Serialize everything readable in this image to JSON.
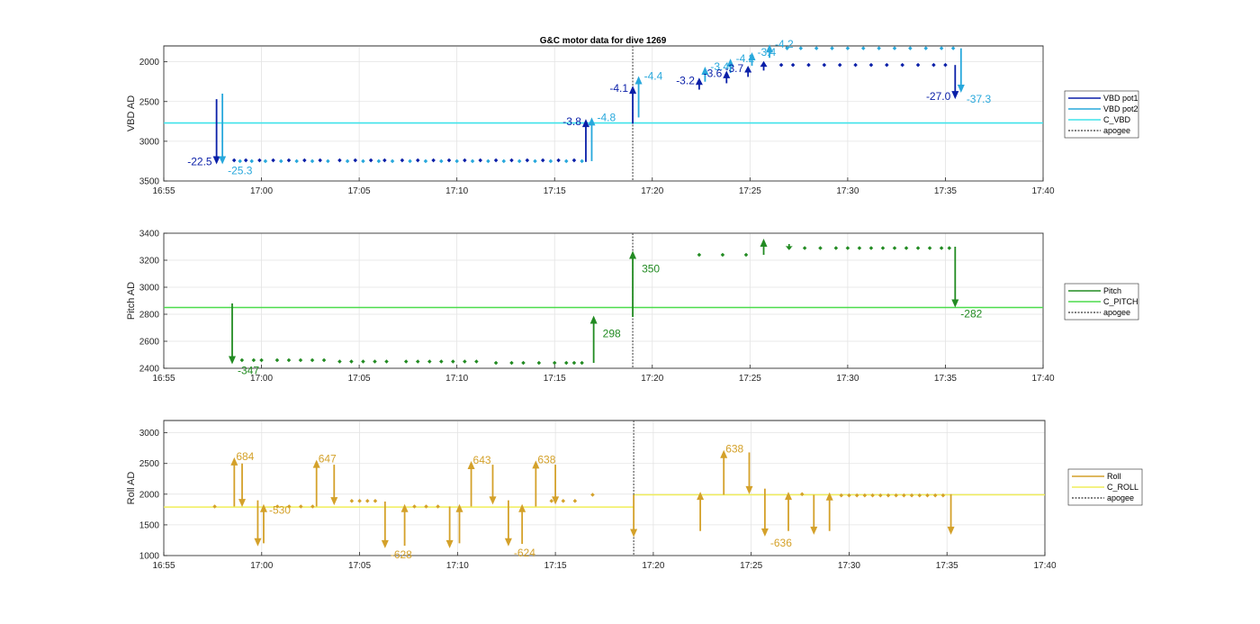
{
  "figure": {
    "title": "G&C motor data for dive 1269"
  },
  "chart_data": [
    {
      "type": "line",
      "ylabel": "VBD AD",
      "ylim": [
        3500,
        1800
      ],
      "y_reversed": true,
      "yticks": [
        2000,
        2500,
        3000,
        3500
      ],
      "xlim": [
        "16:55",
        "17:40"
      ],
      "xticks": [
        "16:55",
        "17:00",
        "17:05",
        "17:10",
        "17:15",
        "17:20",
        "17:25",
        "17:30",
        "17:35",
        "17:40"
      ],
      "grid": true,
      "legend_position": "outside-right",
      "legend": [
        "VBD pot1",
        "VBD pot2",
        "C_VBD",
        "apogee"
      ],
      "colors": {
        "pot1": "#0a1fa8",
        "pot2": "#28a8dc",
        "ref": "#3fe3ea",
        "apogee": "#555555"
      },
      "reference_line": {
        "name": "C_VBD",
        "y": 2770
      },
      "apogee_x": "17:19",
      "series": [
        {
          "name": "VBD pot1",
          "marker": "dot",
          "x": [
            "16:58.6",
            "16:59.2",
            "16:59.9",
            "17:00.6",
            "17:01.4",
            "17:02.2",
            "17:03.0",
            "17:04.0",
            "17:04.8",
            "17:05.6",
            "17:06.3",
            "17:07.2",
            "17:08.0",
            "17:08.8",
            "17:09.6",
            "17:10.4",
            "17:11.2",
            "17:12.0",
            "17:12.8",
            "17:13.6",
            "17:14.4",
            "17:15.2",
            "17:16.0",
            "17:26.6",
            "17:27.2",
            "17:28.0",
            "17:28.8",
            "17:29.6",
            "17:30.4",
            "17:31.2",
            "17:32.0",
            "17:32.8",
            "17:33.6",
            "17:34.4",
            "17:35.0"
          ],
          "y": [
            3240,
            3240,
            3240,
            3240,
            3240,
            3240,
            3240,
            3240,
            3240,
            3240,
            3240,
            3240,
            3240,
            3240,
            3240,
            3240,
            3240,
            3240,
            3240,
            3240,
            3240,
            3240,
            3240,
            2040,
            2040,
            2040,
            2040,
            2040,
            2040,
            2040,
            2040,
            2040,
            2040,
            2040,
            2040
          ]
        },
        {
          "name": "VBD pot2",
          "marker": "dot",
          "x": [
            "16:58.9",
            "16:59.5",
            "17:00.2",
            "17:01.0",
            "17:01.8",
            "17:02.6",
            "17:03.4",
            "17:04.4",
            "17:05.2",
            "17:06.0",
            "17:06.7",
            "17:07.6",
            "17:08.4",
            "17:09.2",
            "17:10.0",
            "17:10.8",
            "17:11.6",
            "17:12.4",
            "17:13.2",
            "17:14.0",
            "17:14.8",
            "17:15.6",
            "17:16.4",
            "17:26.9",
            "17:27.6",
            "17:28.4",
            "17:29.2",
            "17:30.0",
            "17:30.8",
            "17:31.6",
            "17:32.4",
            "17:33.2",
            "17:34.0",
            "17:34.8",
            "17:35.4"
          ],
          "y": [
            3250,
            3250,
            3250,
            3250,
            3250,
            3250,
            3250,
            3250,
            3250,
            3250,
            3250,
            3250,
            3250,
            3250,
            3250,
            3250,
            3250,
            3250,
            3250,
            3250,
            3250,
            3250,
            3250,
            1830,
            1830,
            1830,
            1830,
            1830,
            1830,
            1830,
            1830,
            1830,
            1830,
            1830,
            1830
          ]
        }
      ],
      "moves": [
        {
          "series": "VBD pot1",
          "x": "16:57.7",
          "from": 2470,
          "to": 3290,
          "label": "-22.5",
          "label_side": "left"
        },
        {
          "series": "VBD pot2",
          "x": "16:58.0",
          "from": 2400,
          "to": 3290,
          "label": "-25.3",
          "label_side": "right-below"
        },
        {
          "series": "VBD pot1",
          "x": "17:16.6",
          "from": 3260,
          "to": 2720,
          "label": "-3.8",
          "label_side": "left"
        },
        {
          "series": "VBD pot2",
          "x": "17:16.9",
          "from": 3250,
          "to": 2700,
          "label": "-4.8",
          "label_side": "right"
        },
        {
          "series": "VBD pot1",
          "x": "17:19.0",
          "from": 2780,
          "to": 2300,
          "label": "-4.1",
          "label_side": "left"
        },
        {
          "series": "VBD pot2",
          "x": "17:19.3",
          "from": 2700,
          "to": 2180,
          "label": "-4.4",
          "label_side": "right"
        },
        {
          "series": "VBD pot1",
          "x": "17:22.4",
          "from": 2350,
          "to": 2200,
          "label": "-3.2",
          "label_side": "left"
        },
        {
          "series": "VBD pot2",
          "x": "17:22.7",
          "from": 2250,
          "to": 2060,
          "label": "-3.4",
          "label_side": "right"
        },
        {
          "series": "VBD pot1",
          "x": "17:23.8",
          "from": 2270,
          "to": 2110,
          "label": "-3.6",
          "label_side": "left"
        },
        {
          "series": "VBD pot2",
          "x": "17:24.0",
          "from": 2140,
          "to": 1960,
          "label": "-4.2",
          "label_side": "right"
        },
        {
          "series": "VBD pot1",
          "x": "17:24.9",
          "from": 2190,
          "to": 2050,
          "label": "-3.7",
          "label_side": "left"
        },
        {
          "series": "VBD pot2",
          "x": "17:25.1",
          "from": 2050,
          "to": 1880,
          "label": "-3.4",
          "label_side": "right"
        },
        {
          "series": "VBD pot1",
          "x": "17:25.7",
          "from": 2110,
          "to": 1990,
          "label": "",
          "label_side": "right"
        },
        {
          "series": "VBD pot2",
          "x": "17:26.0",
          "from": 1950,
          "to": 1780,
          "label": "-4.2",
          "label_side": "right"
        },
        {
          "series": "VBD pot1",
          "x": "17:35.5",
          "from": 2040,
          "to": 2470,
          "label": "-27.0",
          "label_side": "left"
        },
        {
          "series": "VBD pot2",
          "x": "17:35.8",
          "from": 1830,
          "to": 2390,
          "label": "-37.3",
          "label_side": "right-below"
        }
      ]
    },
    {
      "type": "line",
      "ylabel": "Pitch AD",
      "ylim": [
        2400,
        3400
      ],
      "yticks": [
        2400,
        2600,
        2800,
        3000,
        3200,
        3400
      ],
      "xlim": [
        "16:55",
        "17:40"
      ],
      "xticks": [
        "16:55",
        "17:00",
        "17:05",
        "17:10",
        "17:15",
        "17:20",
        "17:25",
        "17:30",
        "17:35",
        "17:40"
      ],
      "grid": true,
      "legend_position": "outside-right",
      "legend": [
        "Pitch",
        "C_PITCH",
        "apogee"
      ],
      "colors": {
        "main": "#228b22",
        "ref": "#4cdc4c",
        "apogee": "#555555"
      },
      "reference_line": {
        "name": "C_PITCH",
        "y": 2850
      },
      "apogee_x": "17:19",
      "series": [
        {
          "name": "Pitch",
          "marker": "dot",
          "x": [
            "16:59.0",
            "16:59.6",
            "17:00.0",
            "17:00.8",
            "17:01.4",
            "17:02.0",
            "17:02.6",
            "17:03.2",
            "17:04.0",
            "17:04.6",
            "17:05.2",
            "17:05.8",
            "17:06.4",
            "17:07.4",
            "17:08.0",
            "17:08.6",
            "17:09.2",
            "17:09.8",
            "17:10.4",
            "17:11.0",
            "17:12.0",
            "17:12.8",
            "17:13.4",
            "17:14.2",
            "17:15.0",
            "17:15.6",
            "17:16.0",
            "17:16.4",
            "17:22.4",
            "17:23.6",
            "17:24.8",
            "17:27.0",
            "17:27.8",
            "17:28.6",
            "17:29.4",
            "17:30.0",
            "17:30.6",
            "17:31.2",
            "17:31.8",
            "17:32.4",
            "17:33.0",
            "17:33.6",
            "17:34.2",
            "17:34.8",
            "17:35.2"
          ],
          "y": [
            2460,
            2460,
            2460,
            2460,
            2460,
            2460,
            2460,
            2460,
            2450,
            2450,
            2450,
            2450,
            2450,
            2450,
            2450,
            2450,
            2450,
            2450,
            2450,
            2450,
            2440,
            2440,
            2440,
            2440,
            2440,
            2440,
            2440,
            2440,
            3240,
            3240,
            3240,
            3290,
            3290,
            3290,
            3290,
            3290,
            3290,
            3290,
            3290,
            3290,
            3290,
            3290,
            3290,
            3290,
            3290
          ]
        }
      ],
      "moves": [
        {
          "x": "16:58.5",
          "from": 2880,
          "to": 2430,
          "label": "-347",
          "label_side": "right-below"
        },
        {
          "x": "17:17.0",
          "from": 2440,
          "to": 2790,
          "label": "298",
          "label_side": "right-mid"
        },
        {
          "x": "17:19.0",
          "from": 2780,
          "to": 3270,
          "label": "350",
          "label_side": "right-mid"
        },
        {
          "x": "17:25.7",
          "from": 3240,
          "to": 3360,
          "label": "",
          "label_side": "right"
        },
        {
          "x": "17:27.0",
          "from": 3320,
          "to": 3280,
          "label": "",
          "label_side": "right"
        },
        {
          "x": "17:35.5",
          "from": 3300,
          "to": 2850,
          "label": "-282",
          "label_side": "right-below"
        }
      ]
    },
    {
      "type": "line",
      "ylabel": "Roll AD",
      "ylim": [
        1000,
        3200
      ],
      "yticks": [
        1000,
        1500,
        2000,
        2500,
        3000
      ],
      "xlim": [
        "16:55",
        "17:40"
      ],
      "xticks": [
        "16:55",
        "17:00",
        "17:05",
        "17:10",
        "17:15",
        "17:20",
        "17:25",
        "17:30",
        "17:35",
        "17:40"
      ],
      "grid": true,
      "legend_position": "outside-right",
      "legend": [
        "Roll",
        "C_ROLL",
        "apogee"
      ],
      "colors": {
        "main": "#d4a12a",
        "ref": "#f0ee5a",
        "apogee": "#555555"
      },
      "reference_line": {
        "name": "C_ROLL",
        "segments": [
          {
            "x0": "16:55",
            "x1": "17:19",
            "y": 1790
          },
          {
            "x0": "17:19",
            "x1": "17:40",
            "y": 1990
          }
        ]
      },
      "apogee_x": "17:19",
      "series": [
        {
          "name": "Roll",
          "marker": "dot",
          "x": [
            "16:57.6",
            "17:00.8",
            "17:01.4",
            "17:02.0",
            "17:02.6",
            "17:04.6",
            "17:05.0",
            "17:05.4",
            "17:05.8",
            "17:07.8",
            "17:08.4",
            "17:09.0",
            "17:14.8",
            "17:15.4",
            "17:16.0",
            "17:16.9",
            "17:27.6",
            "17:29.6",
            "17:30.0",
            "17:30.4",
            "17:30.8",
            "17:31.2",
            "17:31.6",
            "17:32.0",
            "17:32.4",
            "17:32.8",
            "17:33.2",
            "17:33.6",
            "17:34.0",
            "17:34.4",
            "17:34.8"
          ],
          "y": [
            1800,
            1800,
            1800,
            1800,
            1800,
            1890,
            1890,
            1890,
            1890,
            1800,
            1800,
            1800,
            1890,
            1890,
            1890,
            1990,
            2000,
            1980,
            1980,
            1980,
            1980,
            1980,
            1980,
            1980,
            1980,
            1980,
            1980,
            1980,
            1980,
            1980,
            1980
          ]
        }
      ],
      "moves": [
        {
          "x": "16:58.6",
          "from": 1800,
          "to": 2600,
          "label": "684",
          "label_side": "right-top"
        },
        {
          "x": "16:59.0",
          "from": 2500,
          "to": 1790,
          "label": "",
          "label_side": "right"
        },
        {
          "x": "16:59.8",
          "from": 1900,
          "to": 1150,
          "label": "",
          "label_side": "right"
        },
        {
          "x": "17:00.1",
          "from": 1200,
          "to": 1840,
          "label": "-530",
          "label_side": "right-below"
        },
        {
          "x": "17:02.8",
          "from": 1800,
          "to": 2560,
          "label": "647",
          "label_side": "right-top"
        },
        {
          "x": "17:03.7",
          "from": 2480,
          "to": 1820,
          "label": "",
          "label_side": "right"
        },
        {
          "x": "17:06.3",
          "from": 1880,
          "to": 1120,
          "label": "-628",
          "label_side": "right-below"
        },
        {
          "x": "17:07.3",
          "from": 1160,
          "to": 1840,
          "label": "",
          "label_side": "right"
        },
        {
          "x": "17:09.6",
          "from": 1800,
          "to": 1120,
          "label": "",
          "label_side": "right"
        },
        {
          "x": "17:10.1",
          "from": 1200,
          "to": 1840,
          "label": "",
          "label_side": "right"
        },
        {
          "x": "17:10.7",
          "from": 1800,
          "to": 2540,
          "label": "643",
          "label_side": "right-top"
        },
        {
          "x": "17:11.8",
          "from": 2480,
          "to": 1830,
          "label": "",
          "label_side": "right"
        },
        {
          "x": "17:12.6",
          "from": 1900,
          "to": 1150,
          "label": "-624",
          "label_side": "right-below"
        },
        {
          "x": "17:13.3",
          "from": 1190,
          "to": 1840,
          "label": "",
          "label_side": "right"
        },
        {
          "x": "17:14.0",
          "from": 1800,
          "to": 2550,
          "label": "638",
          "label_side": "right-top"
        },
        {
          "x": "17:15.0",
          "from": 2480,
          "to": 1830,
          "label": "",
          "label_side": "right"
        },
        {
          "x": "17:19.0",
          "from": 1990,
          "to": 1300,
          "label": "",
          "label_side": "right"
        },
        {
          "x": "17:22.4",
          "from": 1400,
          "to": 2040,
          "label": "",
          "label_side": "right"
        },
        {
          "x": "17:23.6",
          "from": 1990,
          "to": 2720,
          "label": "638",
          "label_side": "right-top"
        },
        {
          "x": "17:24.9",
          "from": 2680,
          "to": 2000,
          "label": "",
          "label_side": "right"
        },
        {
          "x": "17:25.7",
          "from": 2090,
          "to": 1310,
          "label": "-636",
          "label_side": "right-below"
        },
        {
          "x": "17:26.9",
          "from": 1400,
          "to": 2040,
          "label": "",
          "label_side": "right"
        },
        {
          "x": "17:28.2",
          "from": 1990,
          "to": 1340,
          "label": "",
          "label_side": "right"
        },
        {
          "x": "17:29.0",
          "from": 1400,
          "to": 2030,
          "label": "",
          "label_side": "right"
        },
        {
          "x": "17:35.2",
          "from": 2000,
          "to": 1340,
          "label": "",
          "label_side": "right"
        }
      ]
    }
  ]
}
